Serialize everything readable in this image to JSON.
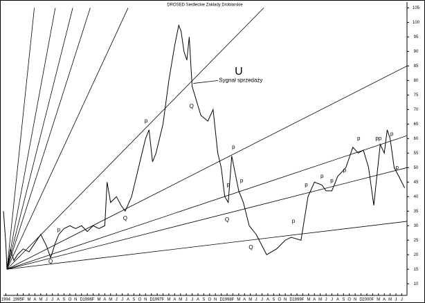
{
  "chart_data": {
    "type": "line",
    "title": "DROSED Siedleckie Zakłady Drobiarskie",
    "x": [
      -2.4,
      -2,
      -1.8,
      -1.2,
      -0.6,
      0,
      1,
      2,
      3,
      4,
      5,
      5.7,
      6.5,
      7.1,
      8,
      9,
      10,
      11,
      12,
      13,
      14,
      15,
      15.4,
      16,
      17,
      17.8,
      18.5,
      19.6,
      20.8,
      22,
      22.6,
      23.2,
      23.8,
      25,
      26,
      27,
      27.7,
      28.1,
      28.6,
      29.1,
      29.5,
      30,
      31.5,
      32.7,
      33.6,
      34.4,
      35,
      35.6,
      36.2,
      36.8,
      37.4,
      38,
      38.8,
      39.8,
      41,
      42.8,
      44.5,
      46,
      47,
      48.7,
      49.9,
      51,
      52.3,
      53,
      54,
      55,
      56.4,
      57.6,
      58.5,
      59.4,
      60.3,
      61.2,
      62.3,
      63,
      63.5,
      64,
      64.7,
      65.5,
      66.5
    ],
    "series": [
      {
        "color": "#000000",
        "values": [
          35,
          24,
          15,
          22,
          18,
          20,
          22,
          21,
          24,
          27,
          23,
          19,
          24,
          27,
          29,
          30,
          29,
          30,
          28,
          30,
          29,
          30,
          45,
          38,
          40,
          37,
          35,
          40,
          50,
          60,
          63,
          52,
          55,
          65,
          80,
          92,
          99,
          97,
          90,
          87,
          95,
          78,
          68,
          66,
          70,
          55,
          50,
          40,
          38,
          54,
          48,
          42,
          38,
          30,
          27,
          20,
          22,
          25,
          26,
          25,
          40,
          45,
          44,
          42,
          42,
          47,
          50,
          57,
          55,
          56,
          50,
          37,
          58,
          55,
          63,
          60,
          50,
          47,
          43
        ]
      }
    ],
    "fan_lines": [
      {
        "x": [
          -1.8,
          66.9
        ],
        "y": [
          15,
          31.5
        ]
      },
      {
        "x": [
          -1.8,
          66.9
        ],
        "y": [
          15,
          50
        ]
      },
      {
        "x": [
          -1.8,
          66.9
        ],
        "y": [
          15,
          61
        ]
      },
      {
        "x": [
          -1.8,
          66.9
        ],
        "y": [
          15,
          85
        ]
      },
      {
        "x": [
          -1.8,
          42.3
        ],
        "y": [
          15,
          105
        ]
      },
      {
        "x": [
          -1.8,
          19.0
        ],
        "y": [
          15,
          105
        ]
      },
      {
        "x": [
          -1.8,
          12.5
        ],
        "y": [
          15,
          105
        ]
      },
      {
        "x": [
          -1.8,
          9.5
        ],
        "y": [
          15,
          105
        ]
      },
      {
        "x": [
          -1.8,
          6.5
        ],
        "y": [
          15,
          105
        ]
      },
      {
        "x": [
          -1.8,
          2.9
        ],
        "y": [
          15,
          105
        ]
      }
    ],
    "annotations": [
      {
        "text": "p",
        "x": 7.1,
        "y": 28.5
      },
      {
        "text": "Q",
        "x": 5.7,
        "y": 17.6
      },
      {
        "text": "Q",
        "x": 18.5,
        "y": 32.5
      },
      {
        "text": "p",
        "x": 22.1,
        "y": 66
      },
      {
        "text": "Q",
        "x": 29.9,
        "y": 71
      },
      {
        "text": "p",
        "x": 37.1,
        "y": 57
      },
      {
        "text": "p",
        "x": 36.2,
        "y": 44
      },
      {
        "text": "p",
        "x": 38.5,
        "y": 45.5
      },
      {
        "text": "Q",
        "x": 36,
        "y": 32
      },
      {
        "text": "Q",
        "x": 40.1,
        "y": 22.5
      },
      {
        "text": "p",
        "x": 47.4,
        "y": 31.5
      },
      {
        "text": "p",
        "x": 49.6,
        "y": 44
      },
      {
        "text": "p",
        "x": 52.3,
        "y": 47
      },
      {
        "text": "p",
        "x": 54,
        "y": 45.5
      },
      {
        "text": "p",
        "x": 56.2,
        "y": 49
      },
      {
        "text": "p",
        "x": 58.6,
        "y": 60
      },
      {
        "text": "pp",
        "x": 62,
        "y": 60
      },
      {
        "text": "p",
        "x": 64.3,
        "y": 61.5
      },
      {
        "text": "p",
        "x": 65.2,
        "y": 50
      },
      {
        "text": "U",
        "x": 38,
        "y": 83
      },
      {
        "text": "Sygnał sprzedaży",
        "x": 34.6,
        "y": 80,
        "target": [
          30.2,
          79
        ]
      }
    ],
    "xlim": [
      -2.4,
      66.9
    ],
    "ylim": [
      6,
      107
    ],
    "yticks": [
      10,
      15,
      20,
      25,
      30,
      35,
      40,
      45,
      50,
      55,
      60,
      65,
      70,
      75,
      80,
      85,
      90,
      95,
      100,
      105
    ],
    "xticks": [
      {
        "value": -2,
        "label": "1994"
      },
      {
        "value": 0,
        "label": "1995"
      },
      {
        "value": 1,
        "label": "F"
      },
      {
        "value": 2,
        "label": "M"
      },
      {
        "value": 3,
        "label": "A"
      },
      {
        "value": 4,
        "label": "M"
      },
      {
        "value": 5,
        "label": "J"
      },
      {
        "value": 6,
        "label": "J"
      },
      {
        "value": 7,
        "label": "A"
      },
      {
        "value": 8,
        "label": "S"
      },
      {
        "value": 9,
        "label": "O"
      },
      {
        "value": 10,
        "label": "N"
      },
      {
        "value": 11,
        "label": "D"
      },
      {
        "value": 12,
        "label": "1996"
      },
      {
        "value": 13,
        "label": "F"
      },
      {
        "value": 14,
        "label": "M"
      },
      {
        "value": 15,
        "label": "A"
      },
      {
        "value": 16,
        "label": "M"
      },
      {
        "value": 17,
        "label": "J"
      },
      {
        "value": 18,
        "label": "J"
      },
      {
        "value": 19,
        "label": "A"
      },
      {
        "value": 20,
        "label": "S"
      },
      {
        "value": 21,
        "label": "O"
      },
      {
        "value": 22,
        "label": "N"
      },
      {
        "value": 23,
        "label": "D"
      },
      {
        "value": 24,
        "label": "1997"
      },
      {
        "value": 25,
        "label": "F"
      },
      {
        "value": 26,
        "label": "M"
      },
      {
        "value": 27,
        "label": "A"
      },
      {
        "value": 28,
        "label": "M"
      },
      {
        "value": 29,
        "label": "J"
      },
      {
        "value": 30,
        "label": "J"
      },
      {
        "value": 31,
        "label": "A"
      },
      {
        "value": 32,
        "label": "S"
      },
      {
        "value": 33,
        "label": "O"
      },
      {
        "value": 34,
        "label": "N"
      },
      {
        "value": 35,
        "label": "D"
      },
      {
        "value": 36,
        "label": "1998"
      },
      {
        "value": 37,
        "label": "F"
      },
      {
        "value": 38,
        "label": "M"
      },
      {
        "value": 39,
        "label": "A"
      },
      {
        "value": 40,
        "label": "M"
      },
      {
        "value": 41,
        "label": "J"
      },
      {
        "value": 42,
        "label": "J"
      },
      {
        "value": 43,
        "label": "A"
      },
      {
        "value": 44,
        "label": "S"
      },
      {
        "value": 45,
        "label": "O"
      },
      {
        "value": 46,
        "label": "N"
      },
      {
        "value": 47,
        "label": "D"
      },
      {
        "value": 48,
        "label": "1999"
      },
      {
        "value": 49,
        "label": "F"
      },
      {
        "value": 50,
        "label": "M"
      },
      {
        "value": 51,
        "label": "A"
      },
      {
        "value": 52,
        "label": "M"
      },
      {
        "value": 53,
        "label": "J"
      },
      {
        "value": 54,
        "label": "J"
      },
      {
        "value": 55,
        "label": "A"
      },
      {
        "value": 56,
        "label": "S"
      },
      {
        "value": 57,
        "label": "O"
      },
      {
        "value": 58,
        "label": "N"
      },
      {
        "value": 59,
        "label": "D"
      },
      {
        "value": 60,
        "label": "2000"
      },
      {
        "value": 61,
        "label": "F"
      },
      {
        "value": 62,
        "label": "M"
      },
      {
        "value": 63,
        "label": "A"
      },
      {
        "value": 64,
        "label": "M"
      },
      {
        "value": 65,
        "label": "J"
      },
      {
        "value": 66,
        "label": "J"
      }
    ]
  }
}
